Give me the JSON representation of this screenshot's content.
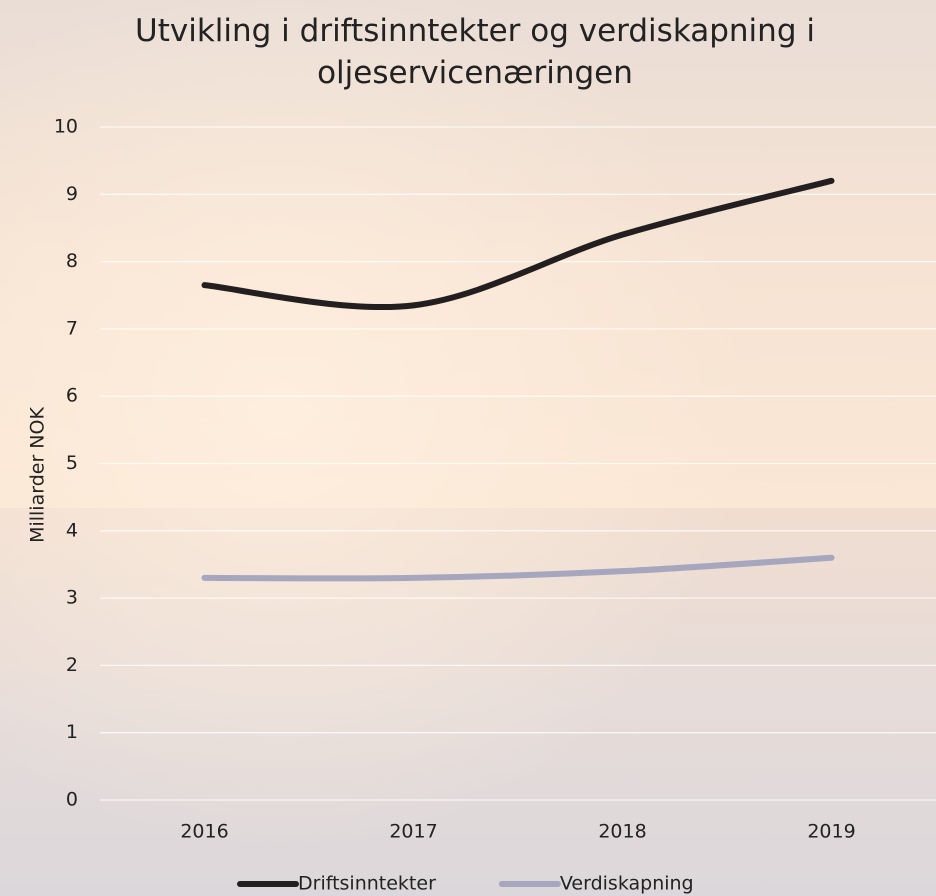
{
  "chart_data": {
    "type": "line",
    "title": "Utvikling i driftsinntekter og verdiskapning i oljeservicenæringen",
    "y_label": "Milliarder NOK",
    "categories": [
      "2016",
      "2017",
      "2018",
      "2019"
    ],
    "series": [
      {
        "name": "Driftsinntekter",
        "color": "#231f20",
        "values": [
          7.65,
          7.35,
          8.4,
          9.2
        ]
      },
      {
        "name": "Verdiskapning",
        "color": "#a6a6bf",
        "values": [
          3.3,
          3.3,
          3.4,
          3.6
        ]
      }
    ],
    "ylim": [
      0,
      10
    ],
    "yticks": [
      0,
      1,
      2,
      3,
      4,
      5,
      6,
      7,
      8,
      9,
      10
    ],
    "grid": true,
    "legend": "bottom"
  }
}
